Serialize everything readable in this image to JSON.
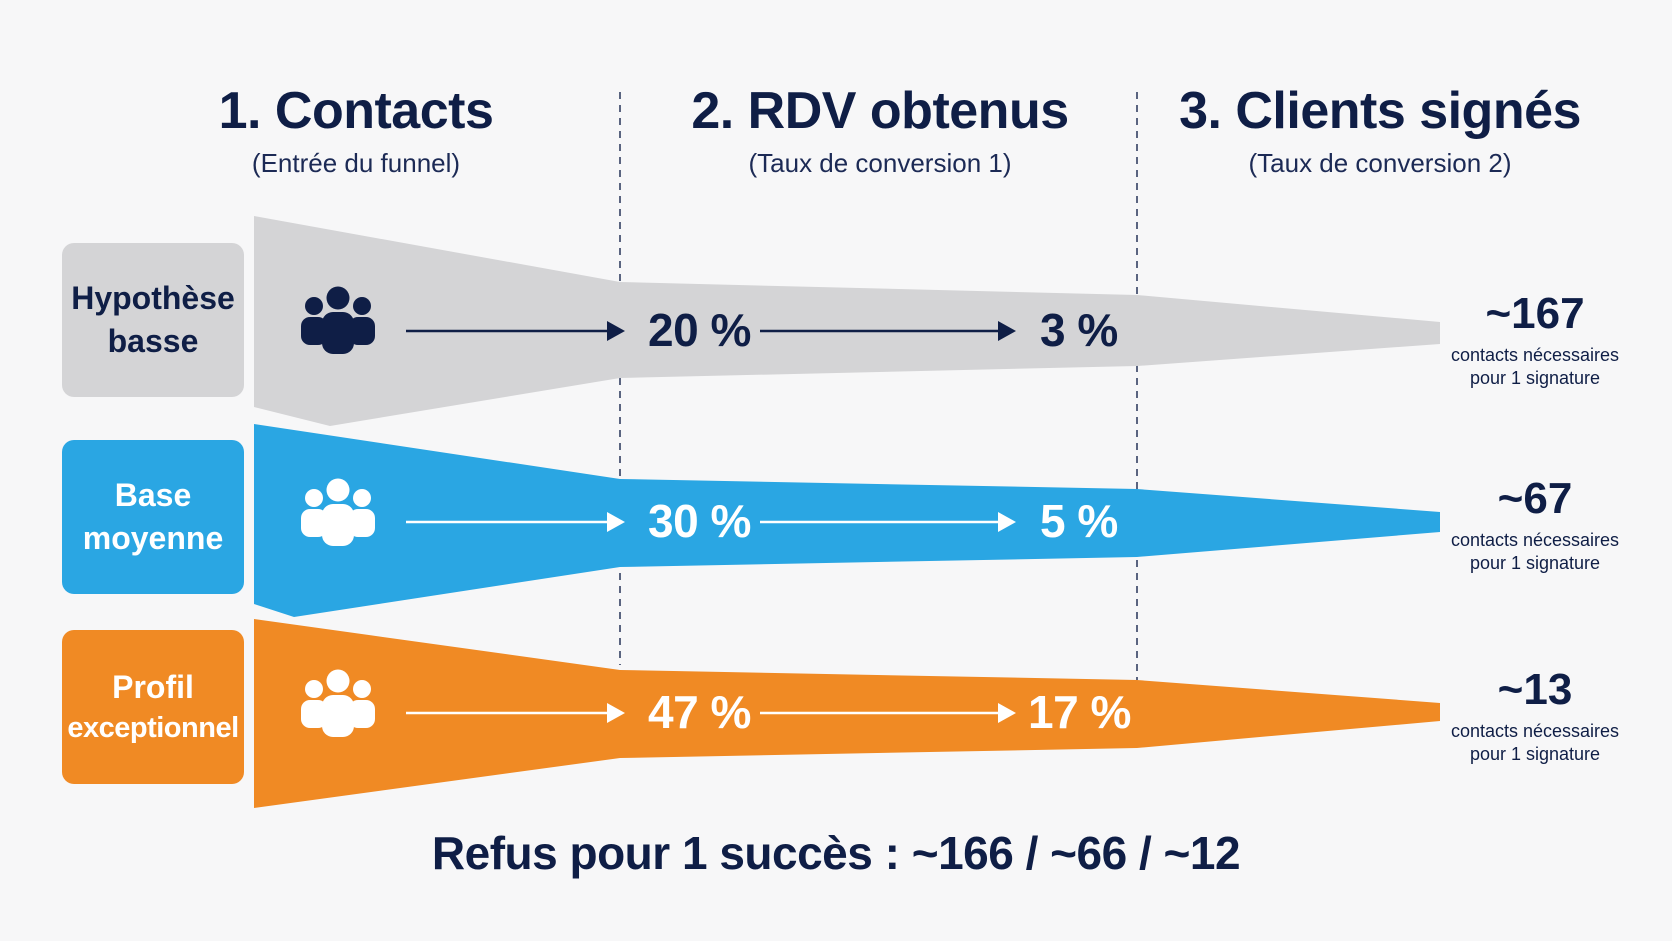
{
  "columns": [
    {
      "title": "1. Contacts",
      "subtitle": "(Entrée du funnel)"
    },
    {
      "title": "2. RDV obtenus",
      "subtitle": "(Taux de conversion 1)"
    },
    {
      "title": "3. Clients signés",
      "subtitle": "(Taux de conversion 2)"
    }
  ],
  "rows": [
    {
      "label_line1": "Hypothèse",
      "label_line2": "basse",
      "rate1": "20 %",
      "rate2": "3 %",
      "result_value": "~167",
      "result_line1": "contacts nécessaires",
      "result_line2": "pour 1 signature",
      "color": "#d4d4d6",
      "icon": "people-group-icon"
    },
    {
      "label_line1": "Base",
      "label_line2": "moyenne",
      "rate1": "30 %",
      "rate2": "5 %",
      "result_value": "~67",
      "result_line1": "contacts nécessaires",
      "result_line2": "pour 1 signature",
      "color": "#2aa6e3",
      "icon": "people-group-icon"
    },
    {
      "label_line1": "Profil",
      "label_line2": "exceptionnel",
      "rate1": "47 %",
      "rate2": "17 %",
      "result_value": "~13",
      "result_line1": "contacts nécessaires",
      "result_line2": "pour 1 signature",
      "color": "#f08a24",
      "icon": "people-group-icon"
    }
  ],
  "footer": "Refus pour 1 succès : ~166 / ~66 / ~12",
  "colors": {
    "navy": "#0f1e46",
    "gray": "#d4d4d6",
    "blue": "#2aa6e3",
    "orange": "#f08a24",
    "background": "#f7f7f8"
  }
}
